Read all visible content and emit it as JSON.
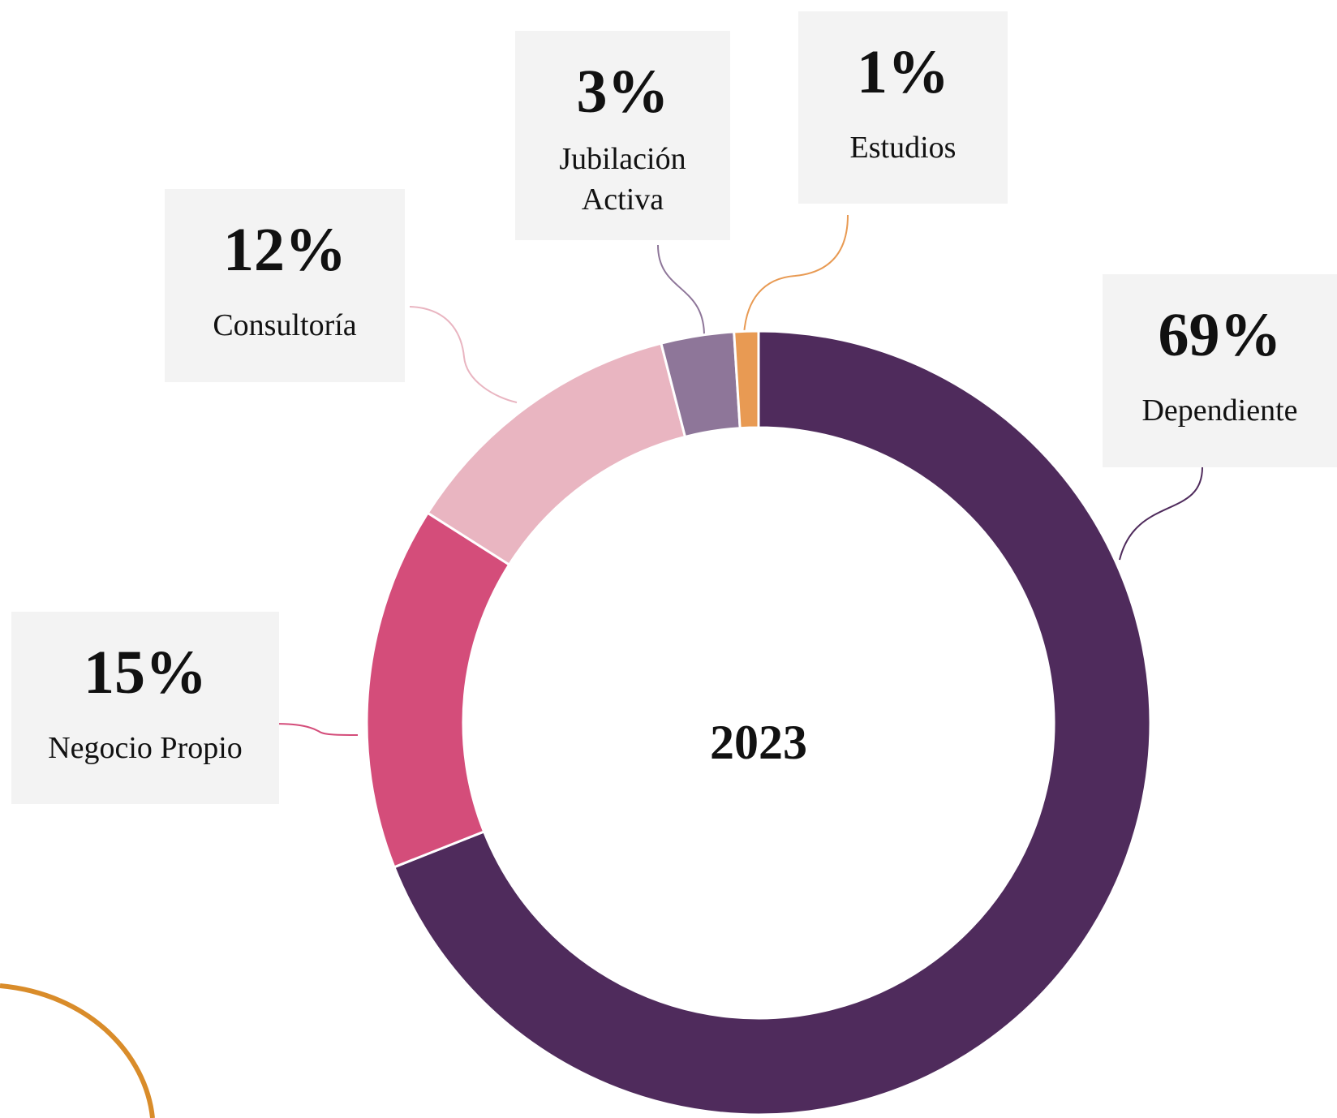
{
  "chart_data": {
    "type": "donut",
    "center_label": "2023",
    "categories": [
      "Dependiente",
      "Negocio Propio",
      "Consultoría",
      "Jubilación Activa",
      "Estudios"
    ],
    "values": [
      69,
      15,
      12,
      3,
      1
    ],
    "value_labels": [
      "69%",
      "15%",
      "12%",
      "3%",
      "1%"
    ],
    "colors": [
      "#4f2b5c",
      "#d44d7a",
      "#e9b5c1",
      "#8e7699",
      "#e89a53"
    ]
  }
}
